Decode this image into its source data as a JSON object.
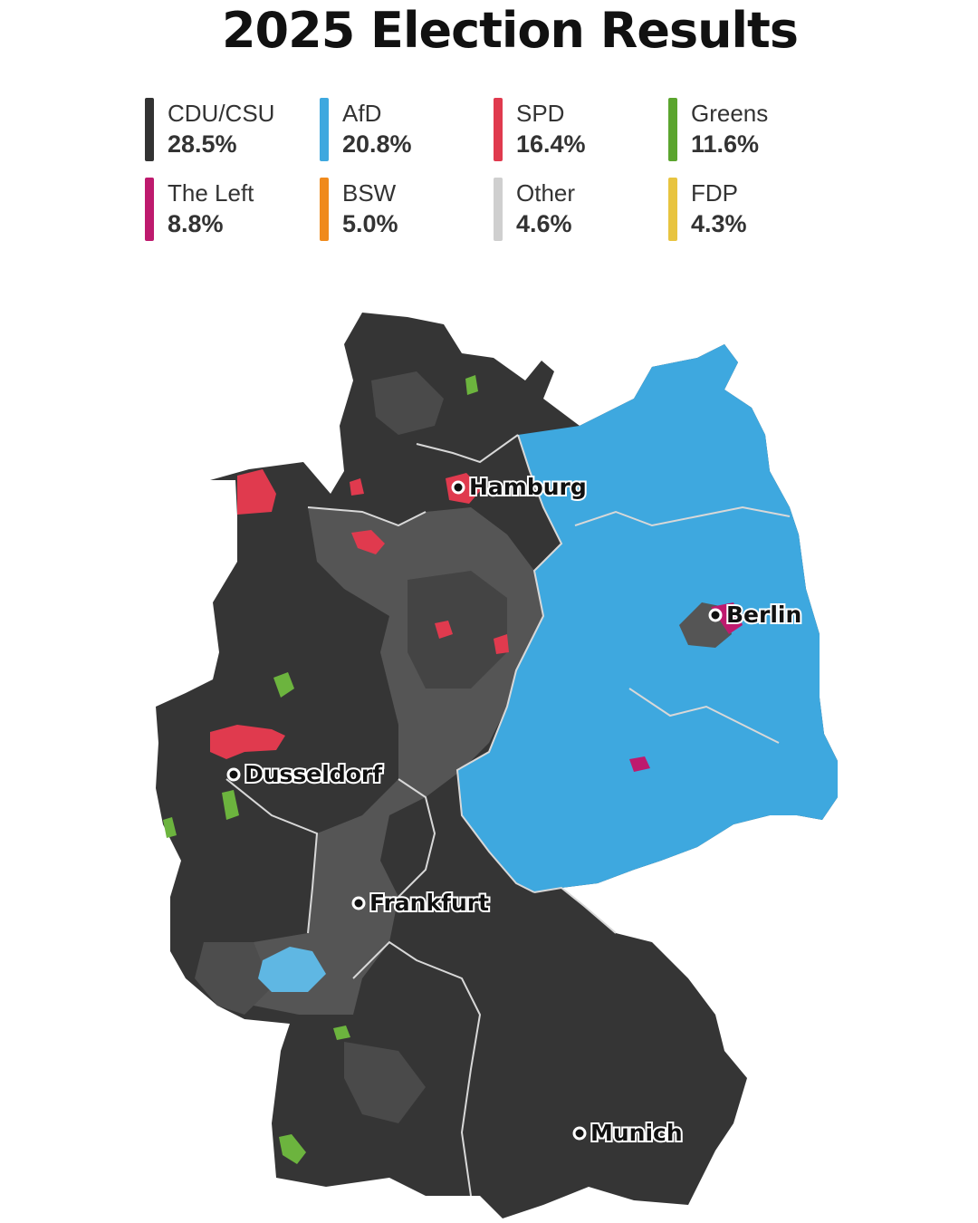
{
  "title": "2025 Election Results",
  "legend": [
    {
      "party": "CDU/CSU",
      "percent": "28.5%",
      "color": "#333333"
    },
    {
      "party": "AfD",
      "percent": "20.8%",
      "color": "#3EA8DF"
    },
    {
      "party": "SPD",
      "percent": "16.4%",
      "color": "#E03A4E"
    },
    {
      "party": "Greens",
      "percent": "11.6%",
      "color": "#5BA52E"
    },
    {
      "party": "The Left",
      "percent": "8.8%",
      "color": "#BE1A6E"
    },
    {
      "party": "BSW",
      "percent": "5.0%",
      "color": "#F08A1C"
    },
    {
      "party": "Other",
      "percent": "4.6%",
      "color": "#CFCFCF"
    },
    {
      "party": "FDP",
      "percent": "4.3%",
      "color": "#E8C440"
    }
  ],
  "cities": [
    "Hamburg",
    "Berlin",
    "Dusseldorf",
    "Frankfurt",
    "Munich"
  ]
}
